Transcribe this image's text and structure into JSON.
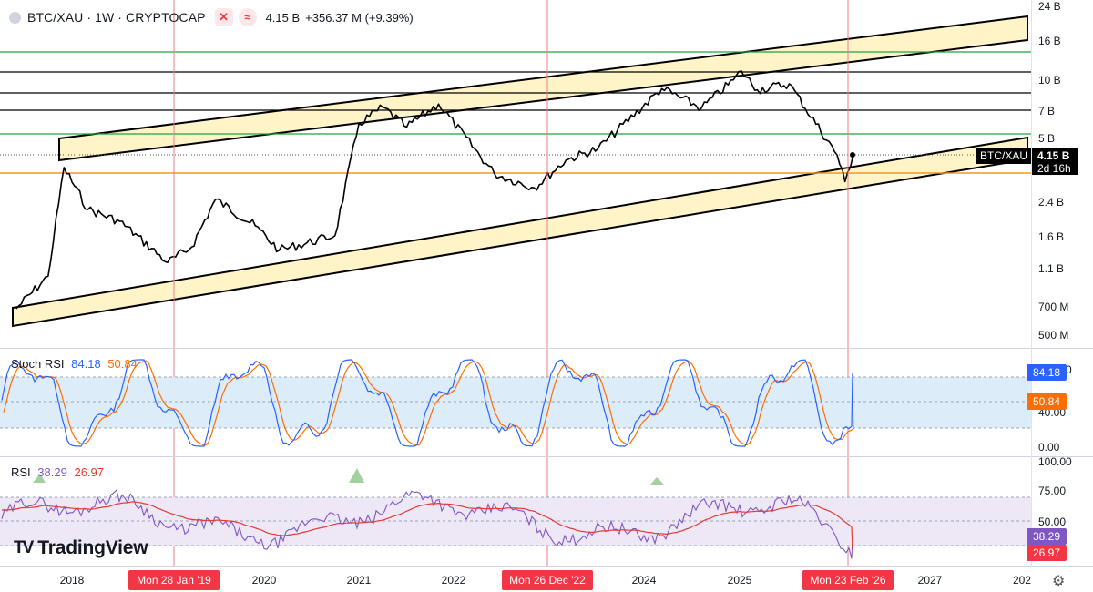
{
  "header": {
    "symbol": "BTC/XAU · 1W · CRYPTOCAP",
    "price": "4.15 B",
    "change": "+356.37 M (+9.39%)"
  },
  "price_label": {
    "symbol": "BTC/XAU",
    "value": "4.15 B",
    "countdown": "2d 16h"
  },
  "stoch_panel": {
    "name": "Stoch RSI",
    "k_value": "84.18",
    "d_value": "50.84",
    "badge_k": "84.18",
    "badge_d": "50.84"
  },
  "rsi_panel": {
    "name": "RSI",
    "rsi_value": "38.29",
    "ma_value": "26.97",
    "badge_rsi": "38.29",
    "badge_ma": "26.97"
  },
  "brand": "TradingView",
  "colors": {
    "price_line": "#000000",
    "channel_fill": "#fff4c8",
    "green_level": "#22a33a",
    "orange_level": "#f5951f",
    "red_marker": "#f07b84",
    "stoch_k": "#2962ff",
    "stoch_d": "#ff6d00",
    "rsi_line": "#7e57c2",
    "rsi_ma": "#e53935",
    "date_badge": "#f23645"
  },
  "chart_data": [
    {
      "type": "line",
      "name": "BTC/XAU weekly price",
      "y_scale": "log",
      "y_tick_labels": [
        "24 B",
        "16 B",
        "10 B",
        "7 B",
        "5 B",
        "2.4 B",
        "1.6 B",
        "1.1 B",
        "700 M",
        "500 M"
      ],
      "x_tick_labels": [
        "2018",
        "2020",
        "2021",
        "2022",
        "2024",
        "2025",
        "2027",
        "202"
      ],
      "marker_dates": [
        "Mon 28 Jan '19",
        "Mon 26 Dec '22",
        "Mon 23 Feb '26"
      ],
      "x": [
        "2017-06",
        "2017-10",
        "2017-12",
        "2018-03",
        "2018-07",
        "2019-01",
        "2019-04",
        "2019-07",
        "2019-12",
        "2020-03",
        "2020-10",
        "2021-01",
        "2021-04",
        "2021-07",
        "2021-11",
        "2022-06",
        "2022-11",
        "2023-03",
        "2023-07",
        "2024-03",
        "2024-08",
        "2024-12",
        "2025-01",
        "2025-03",
        "2025-07",
        "2026-01",
        "2026-02",
        "2026-03"
      ],
      "values": [
        0.45,
        0.72,
        3.5,
        1.9,
        1.6,
        0.88,
        1.1,
        2.2,
        1.5,
        1.05,
        1.3,
        6.6,
        8.4,
        6.3,
        8.8,
        3.2,
        2.6,
        3.9,
        4.6,
        11.0,
        8.3,
        12.5,
        14.2,
        10.8,
        11.8,
        4.2,
        2.85,
        4.15
      ],
      "levels": [
        {
          "value": 14.0,
          "color": "green"
        },
        {
          "value": 11.2,
          "color": "black"
        },
        {
          "value": 9.4,
          "color": "black"
        },
        {
          "value": 7.3,
          "color": "black"
        },
        {
          "value": 5.1,
          "color": "green"
        },
        {
          "value": 3.5,
          "color": "orange"
        }
      ],
      "channel": "ascending parallel channel (upper and lower highlighted bands)",
      "last_value_label": "4.15 B"
    },
    {
      "type": "line",
      "name": "Stoch RSI",
      "y_tick_labels": [
        "100.00",
        "40.00",
        "0.00"
      ],
      "ylim": [
        0,
        100
      ],
      "band": [
        20,
        80
      ],
      "series": [
        {
          "name": "K",
          "last": 84.18
        },
        {
          "name": "D",
          "last": 50.84
        }
      ]
    },
    {
      "type": "line",
      "name": "RSI",
      "y_tick_labels": [
        "100.00",
        "75.00",
        "50.00"
      ],
      "ylim": [
        0,
        100
      ],
      "band": [
        30,
        70
      ],
      "series": [
        {
          "name": "RSI",
          "last": 38.29
        },
        {
          "name": "MA",
          "last": 26.97
        }
      ]
    }
  ]
}
